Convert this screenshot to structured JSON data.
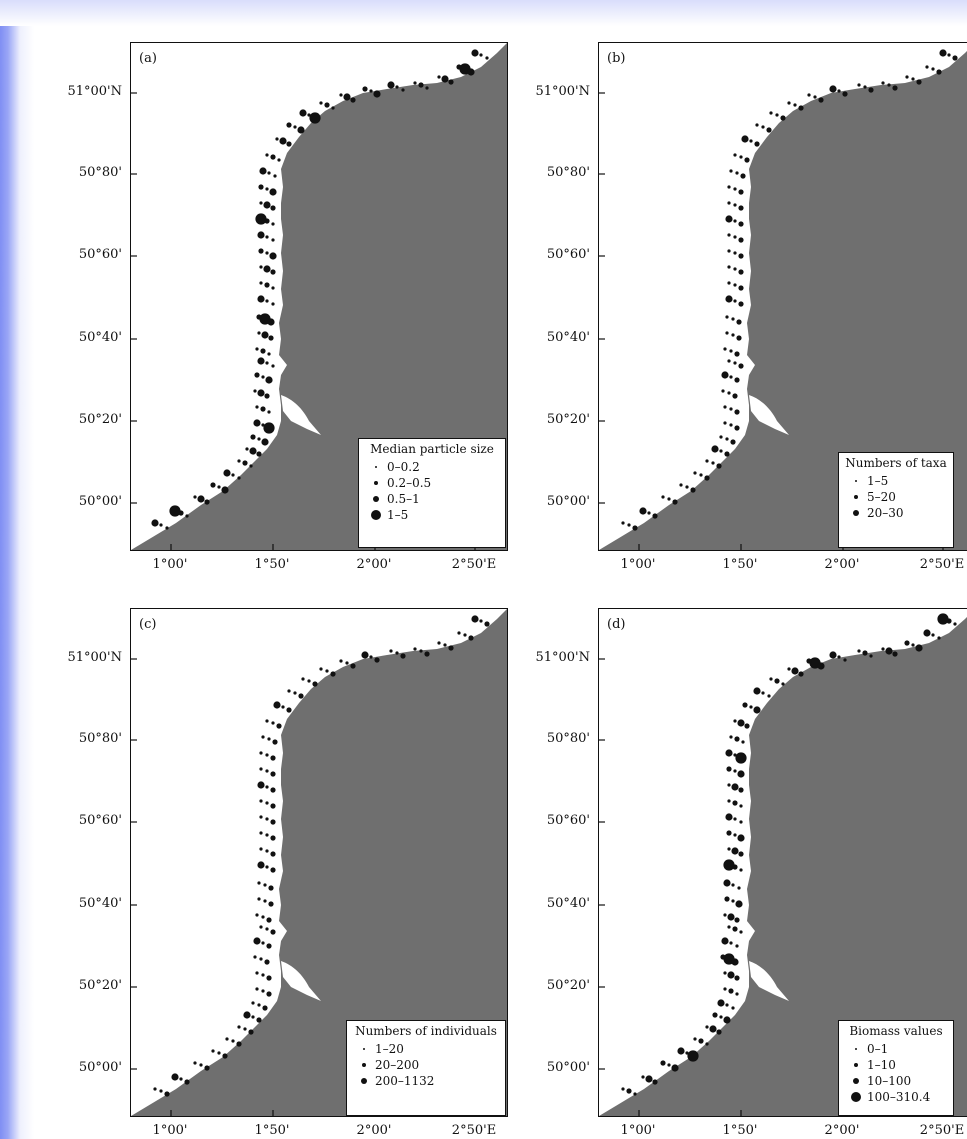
{
  "colors": {
    "land": "#6f6f6f",
    "sea": "#ffffff",
    "marker": "#111111"
  },
  "axes": {
    "y_labels": [
      "51°00'N",
      "50°80'",
      "50°60'",
      "50°40'",
      "50°20'",
      "50°00'"
    ],
    "x_labels": [
      "1°00'",
      "1°50'",
      "2°00'",
      "2°50'E"
    ]
  },
  "panels": [
    {
      "id": "a",
      "label": "(a)",
      "legend_title": "Median particle size",
      "classes": [
        "0–0.2",
        "0.2–0.5",
        "0.5–1",
        "1–5"
      ]
    },
    {
      "id": "b",
      "label": "(b)",
      "legend_title": "Numbers of taxa",
      "classes": [
        "1–5",
        "5–20",
        "20–30"
      ]
    },
    {
      "id": "c",
      "label": "(c)",
      "legend_title": "Numbers of individuals",
      "classes": [
        "1–20",
        "20–200",
        "200–1132"
      ]
    },
    {
      "id": "d",
      "label": "(d)",
      "legend_title": "Biomass values",
      "classes": [
        "0–1",
        "1–10",
        "10–100",
        "100–310.4"
      ]
    }
  ]
}
